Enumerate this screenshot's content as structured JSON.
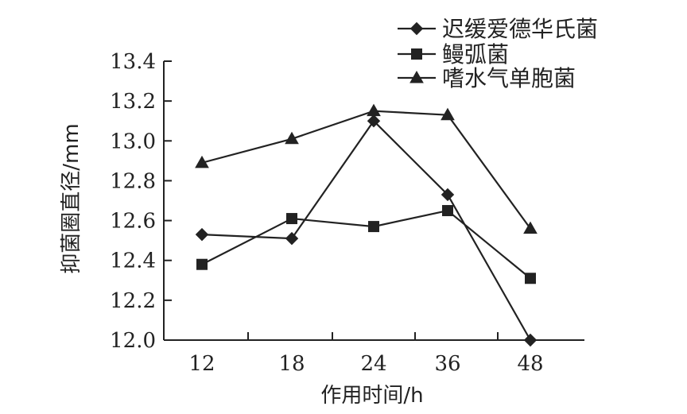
{
  "chart_data": {
    "type": "line",
    "title": "",
    "xlabel": "作用时间/h",
    "ylabel": "抑菌圈直径/mm",
    "categories": [
      "12",
      "18",
      "24",
      "36",
      "48"
    ],
    "y_ticks": [
      "12.0",
      "12.2",
      "12.4",
      "12.6",
      "12.8",
      "13.0",
      "13.2",
      "13.4"
    ],
    "ylim": [
      12.0,
      13.4
    ],
    "grid": false,
    "legend_position": "top-right",
    "series": [
      {
        "name": "迟缓爱德华氏菌",
        "marker": "diamond",
        "values": [
          12.53,
          12.51,
          13.1,
          12.73,
          12.0
        ]
      },
      {
        "name": "鳗弧菌",
        "marker": "square",
        "values": [
          12.38,
          12.61,
          12.57,
          12.65,
          12.31
        ]
      },
      {
        "name": "嗜水气单胞菌",
        "marker": "triangle",
        "values": [
          12.89,
          13.01,
          13.15,
          13.13,
          12.56
        ]
      }
    ]
  }
}
